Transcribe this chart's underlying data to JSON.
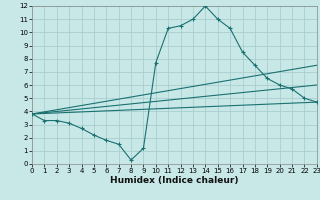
{
  "title": "",
  "xlabel": "Humidex (Indice chaleur)",
  "xlim": [
    0,
    23
  ],
  "ylim": [
    0,
    12
  ],
  "xticks": [
    0,
    1,
    2,
    3,
    4,
    5,
    6,
    7,
    8,
    9,
    10,
    11,
    12,
    13,
    14,
    15,
    16,
    17,
    18,
    19,
    20,
    21,
    22,
    23
  ],
  "yticks": [
    0,
    1,
    2,
    3,
    4,
    5,
    6,
    7,
    8,
    9,
    10,
    11,
    12
  ],
  "bg_color": "#c8e8e8",
  "grid_color": "#aacece",
  "line_color": "#1a7070",
  "series": [
    {
      "x": [
        0,
        1,
        2,
        3,
        4,
        5,
        6,
        7,
        8,
        9,
        10,
        11,
        12,
        13,
        14,
        15,
        16,
        17,
        18,
        19,
        20,
        21,
        22,
        23
      ],
      "y": [
        3.8,
        3.3,
        3.3,
        3.1,
        2.7,
        2.2,
        1.8,
        1.5,
        0.3,
        1.2,
        7.7,
        10.3,
        10.5,
        11.0,
        12.0,
        11.0,
        10.3,
        8.5,
        7.5,
        6.5,
        6.0,
        5.7,
        5.0,
        4.7
      ],
      "marker": true
    },
    {
      "x": [
        0,
        23
      ],
      "y": [
        3.8,
        7.5
      ],
      "marker": false
    },
    {
      "x": [
        0,
        23
      ],
      "y": [
        3.8,
        6.0
      ],
      "marker": false
    },
    {
      "x": [
        0,
        23
      ],
      "y": [
        3.8,
        4.7
      ],
      "marker": false
    }
  ]
}
